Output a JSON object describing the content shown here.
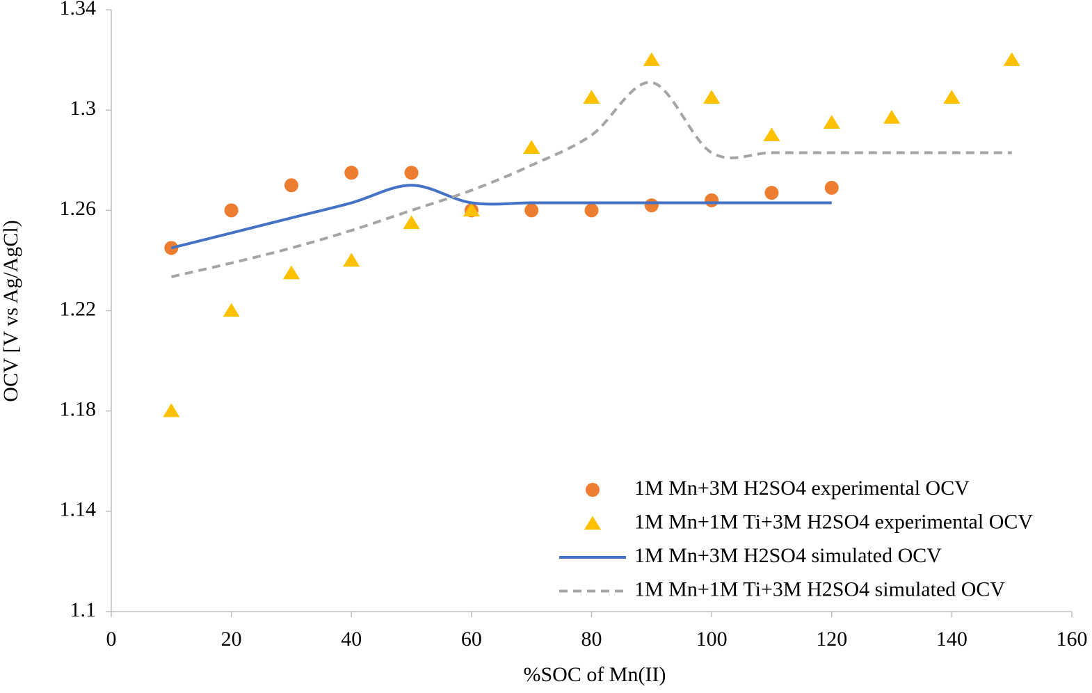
{
  "chart_data": {
    "type": "scatter-line",
    "xlabel": "%SOC of Mn(II)",
    "ylabel": "OCV [V vs Ag/AgCl)",
    "xlim": [
      0,
      160
    ],
    "xticks": [
      0,
      20,
      40,
      60,
      80,
      100,
      120,
      140,
      160
    ],
    "ylim": [
      1.1,
      1.34
    ],
    "yticks": [
      1.1,
      1.14,
      1.18,
      1.22,
      1.26,
      1.3,
      1.34
    ],
    "legend": "bottom-right",
    "series": [
      {
        "name": "1M Mn+3M H2SO4 experimental OCV",
        "color": "#ed7d31",
        "marker": "circle",
        "x": [
          10,
          20,
          30,
          40,
          50,
          60,
          70,
          80,
          90,
          100,
          110,
          120
        ],
        "values": [
          1.245,
          1.26,
          1.27,
          1.275,
          1.275,
          1.26,
          1.26,
          1.26,
          1.262,
          1.264,
          1.267,
          1.269
        ]
      },
      {
        "name": "1M Mn+1M Ti+3M H2SO4 experimental OCV",
        "color": "#ffc000",
        "marker": "triangle",
        "x": [
          10,
          20,
          30,
          40,
          50,
          60,
          70,
          80,
          90,
          100,
          110,
          120,
          130,
          140,
          150
        ],
        "values": [
          1.18,
          1.22,
          1.235,
          1.24,
          1.255,
          1.26,
          1.285,
          1.305,
          1.32,
          1.305,
          1.29,
          1.295,
          1.297,
          1.305,
          1.32
        ]
      },
      {
        "name": "1M Mn+3M H2SO4 simulated OCV",
        "color": "#4472c4",
        "marker": "line",
        "dash": false,
        "smooth": true,
        "x": [
          10,
          20,
          30,
          40,
          50,
          60,
          70,
          80,
          90,
          100,
          110,
          120
        ],
        "values": [
          1.245,
          1.251,
          1.257,
          1.263,
          1.27,
          1.263,
          1.263,
          1.263,
          1.263,
          1.263,
          1.263,
          1.263
        ]
      },
      {
        "name": "1M Mn+1M Ti+3M H2SO4 simulated OCV",
        "color": "#a5a5a5",
        "marker": "line",
        "dash": true,
        "smooth": true,
        "x": [
          10,
          20,
          30,
          40,
          50,
          60,
          70,
          80,
          90,
          100,
          110,
          120,
          130,
          140,
          150
        ],
        "values": [
          1.2335,
          1.239,
          1.245,
          1.252,
          1.26,
          1.268,
          1.278,
          1.29,
          1.311,
          1.283,
          1.283,
          1.283,
          1.283,
          1.283,
          1.283
        ]
      }
    ]
  }
}
